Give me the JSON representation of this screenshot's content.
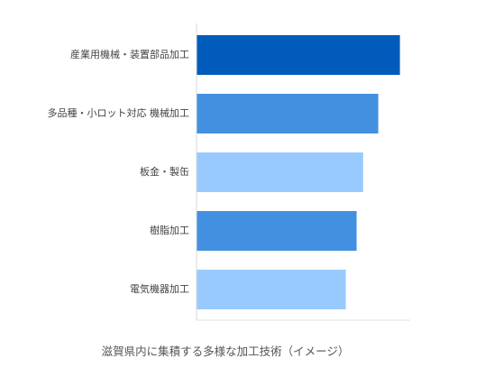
{
  "chart_data": {
    "type": "bar",
    "orientation": "horizontal",
    "categories": [
      "産業用機械・装置部品加工",
      "多品種・小ロット対応 機械加工",
      "板金・製缶",
      "樹脂加工",
      "電気機器加工"
    ],
    "values": [
      94,
      84,
      77,
      74,
      69
    ],
    "xlim": [
      0,
      100
    ],
    "grid": false,
    "legend": "none",
    "caption": "滋賀県内に集積する多様な加工技術（イメージ）",
    "colors": [
      "#005bbb",
      "#4490e0",
      "#99caff",
      "#4490e0",
      "#99caff"
    ]
  }
}
